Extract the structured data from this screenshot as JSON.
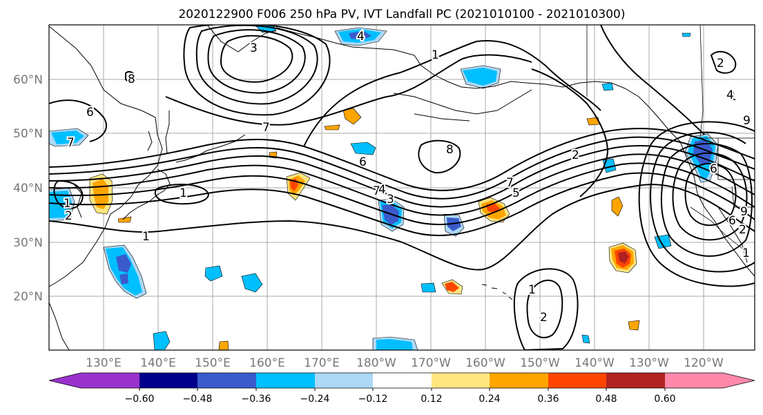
{
  "title": "2020122900 F006 250 hPa PV, IVT Landfall PC (2021010100 - 2021010300)",
  "latitude_labels": [
    "60°N",
    "50°N",
    "40°N",
    "30°N",
    "20°N"
  ],
  "longitude_labels": [
    "130°E",
    "140°E",
    "150°E",
    "160°E",
    "170°E",
    "180°W",
    "170°W",
    "160°W",
    "150°W",
    "140°W",
    "130°W",
    "120°W"
  ],
  "colorbar": {
    "colors": [
      "#9932CC",
      "#00008B",
      "#3A5BCC",
      "#00BFFF",
      "#ADD8F6",
      "#FFFFFF",
      "#FFE680",
      "#FFA500",
      "#FF4500",
      "#B22222",
      "#FF88AA"
    ],
    "tick_labels": [
      "−0.60",
      "−0.48",
      "−0.36",
      "−0.24",
      "−0.12",
      "0.12",
      "0.24",
      "0.36",
      "0.48",
      "0.60"
    ]
  },
  "contour_labels": [
    "3",
    "4",
    "1",
    "1",
    "6",
    "7",
    "8",
    "7",
    "7",
    "6",
    "4",
    "3",
    "1",
    "2",
    "1",
    "7",
    "5",
    "2",
    "2",
    "1",
    "1",
    "4",
    "6",
    "9",
    "6",
    "9",
    "2",
    "8",
    "2",
    "1"
  ]
}
